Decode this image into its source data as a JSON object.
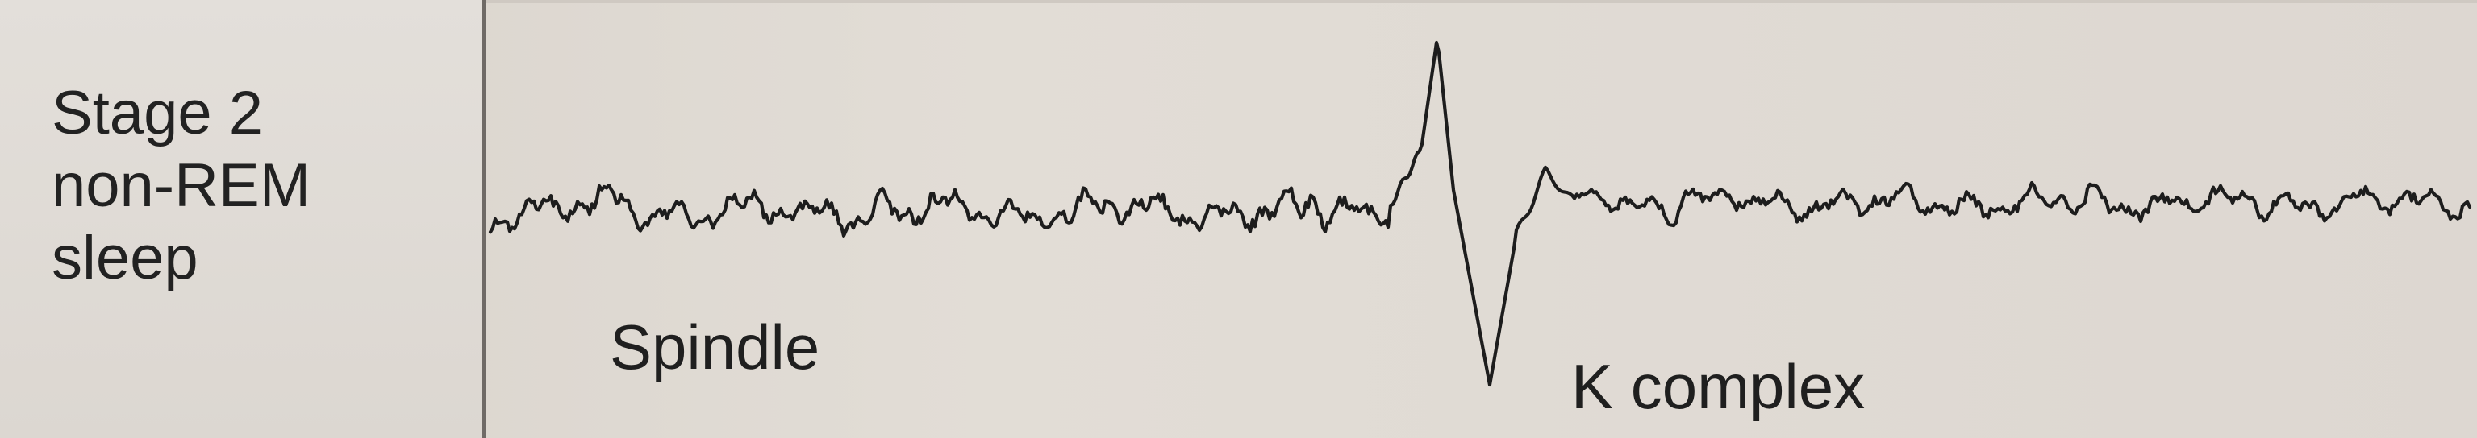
{
  "stage_label": {
    "line1": "Stage 2",
    "line2": "non-REM",
    "line3": "sleep"
  },
  "annotations": {
    "spindle": "Spindle",
    "k_complex": "K complex"
  },
  "colors": {
    "label_panel": "#e3dfda",
    "trace_background": "#ddd7d0",
    "trace_line": "#1d1d1d",
    "divider": "#6f6a66"
  }
}
